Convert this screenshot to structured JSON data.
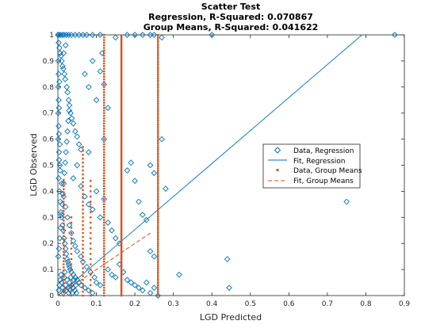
{
  "chart_data": {
    "type": "scatter",
    "title": "Scatter Test",
    "subtitle_lines": [
      "Regression, R-Squared: 0.070867",
      "Group Means, R-Squared: 0.041622"
    ],
    "xlabel": "LGD Predicted",
    "ylabel": "LGD Observed",
    "xlim": [
      0,
      0.9
    ],
    "ylim": [
      0,
      1
    ],
    "xticks": [
      "0",
      "0.1",
      "0.2",
      "0.3",
      "0.4",
      "0.5",
      "0.6",
      "0.7",
      "0.8",
      "0.9"
    ],
    "yticks": [
      "0",
      "0.1",
      "0.2",
      "0.3",
      "0.4",
      "0.5",
      "0.6",
      "0.7",
      "0.8",
      "0.9",
      "1"
    ],
    "grid": false,
    "legend_position": "center-right",
    "colors": {
      "regression": "#0072BD",
      "group_means": "#D95319"
    },
    "legend": [
      {
        "label": "Data, Regression",
        "marker": "diamond",
        "color": "#0072BD"
      },
      {
        "label": "Fit, Regression",
        "marker": "line",
        "color": "#0072BD"
      },
      {
        "label": "Data, Group Means",
        "marker": "dot",
        "color": "#D95319"
      },
      {
        "label": "Fit, Group Means",
        "marker": "dashed-line",
        "color": "#D95319"
      }
    ],
    "series": [
      {
        "name": "Data, Regression",
        "kind": "points",
        "points": [
          [
            0.0,
            1.0
          ],
          [
            0.003,
            1.0
          ],
          [
            0.007,
            1.0
          ],
          [
            0.012,
            1.0
          ],
          [
            0.016,
            1.0
          ],
          [
            0.022,
            1.0
          ],
          [
            0.028,
            1.0
          ],
          [
            0.035,
            1.0
          ],
          [
            0.045,
            1.0
          ],
          [
            0.055,
            1.0
          ],
          [
            0.065,
            1.0
          ],
          [
            0.075,
            1.0
          ],
          [
            0.09,
            1.0
          ],
          [
            0.11,
            1.0
          ],
          [
            0.15,
            0.99
          ],
          [
            0.18,
            1.0
          ],
          [
            0.2,
            1.0
          ],
          [
            0.22,
            1.0
          ],
          [
            0.24,
            1.0
          ],
          [
            0.25,
            1.0
          ],
          [
            0.27,
            0.99
          ],
          [
            0.4,
            1.0
          ],
          [
            0.875,
            1.0
          ],
          [
            0.002,
            0.97
          ],
          [
            0.004,
            0.95
          ],
          [
            0.006,
            0.93
          ],
          [
            0.008,
            0.92
          ],
          [
            0.01,
            0.9
          ],
          [
            0.012,
            0.88
          ],
          [
            0.014,
            0.87
          ],
          [
            0.015,
            0.93
          ],
          [
            0.017,
            0.85
          ],
          [
            0.019,
            0.83
          ],
          [
            0.02,
            0.96
          ],
          [
            0.023,
            0.8
          ],
          [
            0.025,
            0.78
          ],
          [
            0.028,
            0.75
          ],
          [
            0.03,
            0.73
          ],
          [
            0.033,
            0.7
          ],
          [
            0.036,
            0.68
          ],
          [
            0.04,
            0.66
          ],
          [
            0.045,
            0.63
          ],
          [
            0.05,
            0.61
          ],
          [
            0.055,
            0.58
          ],
          [
            0.06,
            0.56
          ],
          [
            0.07,
            0.85
          ],
          [
            0.08,
            0.8
          ],
          [
            0.09,
            0.9
          ],
          [
            0.1,
            0.75
          ],
          [
            0.11,
            0.86
          ],
          [
            0.115,
            0.93
          ],
          [
            0.12,
            0.81
          ],
          [
            0.13,
            0.72
          ],
          [
            0.12,
            0.6
          ],
          [
            0.08,
            0.55
          ],
          [
            0.002,
            0.45
          ],
          [
            0.004,
            0.4
          ],
          [
            0.006,
            0.36
          ],
          [
            0.008,
            0.32
          ],
          [
            0.01,
            0.3
          ],
          [
            0.012,
            0.27
          ],
          [
            0.014,
            0.25
          ],
          [
            0.016,
            0.22
          ],
          [
            0.018,
            0.2
          ],
          [
            0.02,
            0.18
          ],
          [
            0.022,
            0.16
          ],
          [
            0.024,
            0.14
          ],
          [
            0.026,
            0.13
          ],
          [
            0.028,
            0.12
          ],
          [
            0.03,
            0.11
          ],
          [
            0.032,
            0.1
          ],
          [
            0.035,
            0.09
          ],
          [
            0.04,
            0.08
          ],
          [
            0.045,
            0.07
          ],
          [
            0.05,
            0.06
          ],
          [
            0.055,
            0.05
          ],
          [
            0.06,
            0.04
          ],
          [
            0.07,
            0.03
          ],
          [
            0.08,
            0.02
          ],
          [
            0.09,
            0.01
          ],
          [
            0.003,
            0.52
          ],
          [
            0.006,
            0.48
          ],
          [
            0.01,
            0.43
          ],
          [
            0.015,
            0.38
          ],
          [
            0.02,
            0.34
          ],
          [
            0.025,
            0.3
          ],
          [
            0.03,
            0.27
          ],
          [
            0.035,
            0.24
          ],
          [
            0.04,
            0.21
          ],
          [
            0.045,
            0.19
          ],
          [
            0.05,
            0.17
          ],
          [
            0.06,
            0.15
          ],
          [
            0.065,
            0.13
          ],
          [
            0.075,
            0.11
          ],
          [
            0.085,
            0.09
          ],
          [
            0.095,
            0.07
          ],
          [
            0.1,
            0.05
          ],
          [
            0.11,
            0.04
          ],
          [
            0.04,
            0.45
          ],
          [
            0.05,
            0.5
          ],
          [
            0.06,
            0.42
          ],
          [
            0.07,
            0.38
          ],
          [
            0.08,
            0.35
          ],
          [
            0.09,
            0.33
          ],
          [
            0.1,
            0.4
          ],
          [
            0.11,
            0.3
          ],
          [
            0.12,
            0.37
          ],
          [
            0.13,
            0.28
          ],
          [
            0.14,
            0.25
          ],
          [
            0.15,
            0.22
          ],
          [
            0.16,
            0.2
          ],
          [
            0.18,
            0.48
          ],
          [
            0.19,
            0.51
          ],
          [
            0.2,
            0.44
          ],
          [
            0.21,
            0.36
          ],
          [
            0.22,
            0.31
          ],
          [
            0.23,
            0.29
          ],
          [
            0.24,
            0.17
          ],
          [
            0.25,
            0.15
          ],
          [
            0.13,
            0.1
          ],
          [
            0.14,
            0.08
          ],
          [
            0.15,
            0.07
          ],
          [
            0.16,
            0.12
          ],
          [
            0.17,
            0.09
          ],
          [
            0.18,
            0.06
          ],
          [
            0.19,
            0.05
          ],
          [
            0.2,
            0.04
          ],
          [
            0.21,
            0.03
          ],
          [
            0.22,
            0.02
          ],
          [
            0.23,
            0.05
          ],
          [
            0.24,
            0.01
          ],
          [
            0.25,
            0.03
          ],
          [
            0.24,
            0.5
          ],
          [
            0.25,
            0.47
          ],
          [
            0.27,
            0.6
          ],
          [
            0.28,
            0.41
          ],
          [
            0.26,
            0.0
          ],
          [
            0.315,
            0.08
          ],
          [
            0.44,
            0.14
          ],
          [
            0.445,
            0.03
          ],
          [
            0.75,
            0.36
          ],
          [
            0.002,
            0.02
          ],
          [
            0.004,
            0.04
          ],
          [
            0.006,
            0.06
          ],
          [
            0.008,
            0.08
          ],
          [
            0.01,
            0.05
          ],
          [
            0.012,
            0.03
          ],
          [
            0.014,
            0.01
          ],
          [
            0.016,
            0.07
          ],
          [
            0.018,
            0.09
          ],
          [
            0.02,
            0.04
          ],
          [
            0.022,
            0.02
          ],
          [
            0.024,
            0.06
          ],
          [
            0.026,
            0.03
          ],
          [
            0.028,
            0.01
          ],
          [
            0.03,
            0.05
          ],
          [
            0.032,
            0.02
          ],
          [
            0.034,
            0.07
          ],
          [
            0.036,
            0.04
          ],
          [
            0.038,
            0.01
          ],
          [
            0.04,
            0.03
          ],
          [
            0.042,
            0.06
          ],
          [
            0.044,
            0.02
          ],
          [
            0.046,
            0.04
          ],
          [
            0.048,
            0.01
          ],
          [
            0.001,
            0.15
          ],
          [
            0.003,
            0.18
          ],
          [
            0.005,
            0.22
          ],
          [
            0.007,
            0.26
          ],
          [
            0.009,
            0.31
          ],
          [
            0.011,
            0.35
          ],
          [
            0.013,
            0.39
          ],
          [
            0.015,
            0.43
          ],
          [
            0.017,
            0.47
          ],
          [
            0.019,
            0.51
          ],
          [
            0.021,
            0.55
          ],
          [
            0.023,
            0.59
          ],
          [
            0.025,
            0.63
          ],
          [
            0.027,
            0.67
          ],
          [
            0.029,
            0.71
          ],
          [
            0.001,
            0.6
          ],
          [
            0.001,
            0.7
          ],
          [
            0.001,
            0.8
          ],
          [
            0.001,
            0.9
          ],
          [
            0.002,
            0.65
          ],
          [
            0.002,
            0.75
          ],
          [
            0.002,
            0.85
          ],
          [
            0.003,
            0.55
          ],
          [
            0.003,
            0.62
          ],
          [
            0.003,
            0.72
          ],
          [
            0.004,
            0.82
          ],
          [
            0.005,
            0.5
          ],
          [
            0.005,
            0.58
          ]
        ]
      },
      {
        "name": "Fit, Regression",
        "kind": "line",
        "points": [
          [
            0.0,
            0.0
          ],
          [
            0.79,
            1.0
          ]
        ]
      },
      {
        "name": "Data, Group Means",
        "kind": "columns",
        "columns": [
          {
            "x": 0.015,
            "ymin": 0.0,
            "ymax": 0.45,
            "density": 0.012
          },
          {
            "x": 0.035,
            "ymin": 0.0,
            "ymax": 0.3,
            "density": 0.02
          },
          {
            "x": 0.065,
            "ymin": 0.0,
            "ymax": 0.57,
            "density": 0.015
          },
          {
            "x": 0.085,
            "ymin": 0.0,
            "ymax": 0.45,
            "density": 0.02
          },
          {
            "x": 0.12,
            "ymin": 0.0,
            "ymax": 1.0,
            "density": 0.01
          },
          {
            "x": 0.165,
            "ymin": 0.0,
            "ymax": 1.0,
            "density": 0.006
          },
          {
            "x": 0.26,
            "ymin": 0.0,
            "ymax": 1.0,
            "density": 0.008
          }
        ]
      },
      {
        "name": "Fit, Group Means",
        "kind": "dashed-line",
        "points": [
          [
            0.0,
            0.0
          ],
          [
            0.24,
            0.24
          ]
        ]
      }
    ]
  }
}
